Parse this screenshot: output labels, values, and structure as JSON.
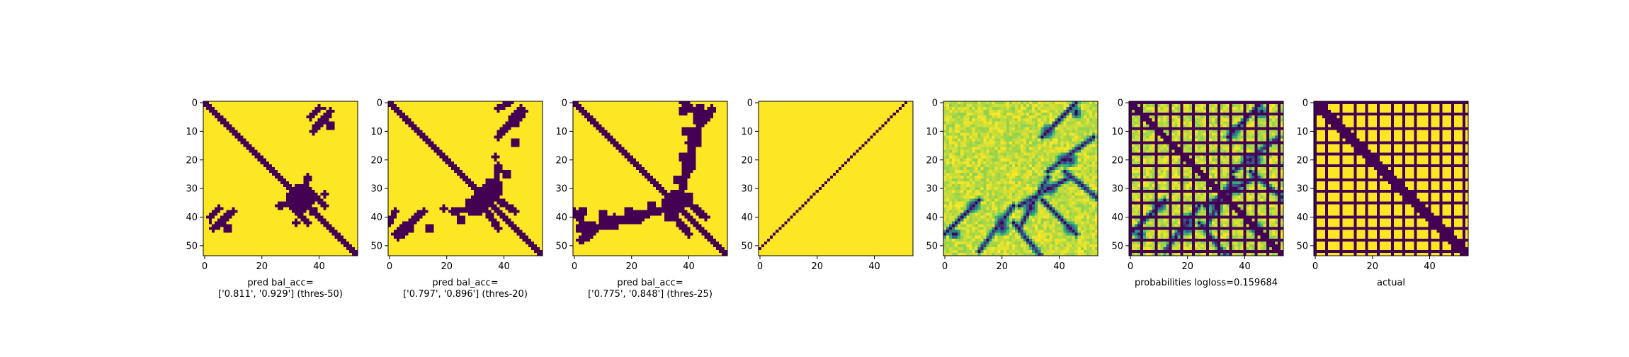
{
  "colors": {
    "background": "#440154",
    "foreground": "#fde725",
    "colormap": [
      "#440154",
      "#3b528b",
      "#21918c",
      "#5ec962",
      "#fde725"
    ]
  },
  "chart_data": [
    {
      "type": "heatmap",
      "matrix_size": 54,
      "xlim": [
        0,
        54
      ],
      "ylim": [
        54,
        0
      ],
      "xticks": [
        "0",
        "20",
        "40"
      ],
      "yticks": [
        "0",
        "10",
        "20",
        "30",
        "40",
        "50"
      ],
      "xlabel": [
        "pred bal_acc=",
        "['0.811', '0.929'] (thres-50)"
      ],
      "content": "binary",
      "diag_width": 1.6,
      "blobs": [
        [
          34,
          31,
          3.5,
          3
        ],
        [
          34,
          37,
          2.5,
          1.8
        ],
        [
          38,
          38,
          2,
          1.5
        ],
        [
          44,
          8,
          1.5,
          2
        ],
        [
          32,
          42,
          1.2,
          1.5
        ],
        [
          42,
          2,
          1,
          1
        ]
      ],
      "blob_lines": [
        [
          [
            3,
            44
          ],
          [
            10,
            38
          ]
        ],
        [
          [
            42,
            36
          ],
          [
            37,
            31
          ]
        ],
        [
          [
            26,
            36
          ],
          [
            33,
            34
          ]
        ],
        [
          [
            37,
            5
          ],
          [
            40,
            2
          ]
        ]
      ],
      "sym_lines": true,
      "zero_band": []
    },
    {
      "type": "heatmap",
      "matrix_size": 54,
      "xlim": [
        0,
        54
      ],
      "ylim": [
        54,
        0
      ],
      "xticks": [
        "0",
        "20",
        "40"
      ],
      "yticks": [
        "0",
        "10",
        "20",
        "30",
        "40",
        "50"
      ],
      "xlabel": [
        "pred bal_acc=",
        "['0.797', '0.896'] (thres-20)"
      ],
      "content": "binary",
      "diag_width": 1.8,
      "blobs": [
        [
          34,
          32,
          4,
          3.5
        ],
        [
          36,
          28,
          2.5,
          2
        ],
        [
          30,
          38,
          3,
          2
        ],
        [
          41,
          25,
          2,
          2
        ],
        [
          44,
          6,
          2,
          2.5
        ],
        [
          44,
          14,
          1.5,
          2
        ],
        [
          37,
          19,
          1.2,
          1.5
        ],
        [
          4,
          44,
          1.2,
          1.5
        ]
      ],
      "blob_lines": [
        [
          [
            2,
            46
          ],
          [
            12,
            38
          ]
        ],
        [
          [
            44,
            38
          ],
          [
            35,
            32
          ]
        ],
        [
          [
            30,
            37
          ],
          [
            22,
            38
          ]
        ],
        [
          [
            38,
            2
          ],
          [
            42,
            0
          ]
        ],
        [
          [
            47,
            3
          ],
          [
            44,
            7
          ]
        ]
      ],
      "sym_lines": true,
      "zero_band": []
    },
    {
      "type": "heatmap",
      "matrix_size": 54,
      "xlim": [
        0,
        54
      ],
      "ylim": [
        54,
        0
      ],
      "xticks": [
        "0",
        "20",
        "40"
      ],
      "yticks": [
        "0",
        "10",
        "20",
        "30",
        "40",
        "50"
      ],
      "xlabel": [
        "pred bal_acc=",
        "['0.775', '0.848'] (thres-25)"
      ],
      "content": "binary",
      "diag_width": 1.8,
      "blobs": [
        [
          36,
          34,
          4.5,
          4
        ],
        [
          37,
          27,
          3,
          2
        ],
        [
          40,
          22,
          3,
          2.5
        ],
        [
          34,
          40,
          3,
          2
        ],
        [
          44,
          5,
          3,
          3
        ],
        [
          43,
          13,
          2,
          2.5
        ],
        [
          38,
          19,
          2,
          2
        ],
        [
          40,
          10,
          3,
          2
        ],
        [
          38,
          3,
          2,
          2
        ],
        [
          44,
          2,
          2,
          2
        ]
      ],
      "blob_lines": [
        [
          [
            2,
            48
          ],
          [
            14,
            40
          ]
        ],
        [
          [
            46,
            40
          ],
          [
            36,
            32
          ]
        ],
        [
          [
            30,
            38
          ],
          [
            20,
            40
          ]
        ],
        [
          [
            41,
            20
          ],
          [
            41,
            12
          ]
        ],
        [
          [
            48,
            3
          ],
          [
            44,
            8
          ]
        ],
        [
          [
            38,
            0
          ],
          [
            46,
            6
          ]
        ]
      ],
      "sym_lines": true,
      "zero_band": []
    },
    {
      "type": "heatmap",
      "matrix_size": 54,
      "xlim": [
        0,
        54
      ],
      "ylim": [
        54,
        0
      ],
      "xticks": [
        "0",
        "20",
        "40"
      ],
      "yticks": [
        "0",
        "10",
        "20",
        "30",
        "40",
        "50"
      ],
      "xlabel": [
        "",
        ""
      ],
      "content": "antidiag",
      "diag_width": 0.5,
      "blobs": [],
      "blob_lines": [],
      "sym_lines": false,
      "zero_band": []
    },
    {
      "type": "heatmap",
      "matrix_size": 54,
      "xlim": [
        0,
        54
      ],
      "ylim": [
        54,
        0
      ],
      "xticks": [
        "0",
        "20",
        "40"
      ],
      "yticks": [
        "0",
        "10",
        "20",
        "30",
        "40",
        "50"
      ],
      "xlabel": [
        "",
        ""
      ],
      "content": "probabilities",
      "diag_width": 0,
      "blobs": [
        [
          30,
          36,
          3,
          3
        ],
        [
          37,
          30,
          3,
          3
        ],
        [
          42,
          20,
          4,
          3
        ],
        [
          44,
          44,
          3,
          3
        ],
        [
          20,
          44,
          3,
          3
        ],
        [
          36,
          10,
          3,
          3
        ],
        [
          46,
          3,
          2,
          2
        ],
        [
          4,
          46,
          2,
          2
        ]
      ],
      "blob_lines": [
        [
          [
            0,
            46
          ],
          [
            12,
            34
          ]
        ],
        [
          [
            46,
            46
          ],
          [
            34,
            34
          ]
        ],
        [
          [
            36,
            26
          ],
          [
            26,
            44
          ]
        ],
        [
          [
            12,
            52
          ],
          [
            24,
            36
          ]
        ],
        [
          [
            54,
            34
          ],
          [
            42,
            24
          ]
        ]
      ],
      "sym_lines": true,
      "zero_band": []
    },
    {
      "type": "heatmap",
      "matrix_size": 54,
      "xlim": [
        0,
        54
      ],
      "ylim": [
        54,
        0
      ],
      "xticks": [
        "0",
        "20",
        "40"
      ],
      "yticks": [
        "0",
        "10",
        "20",
        "30",
        "40",
        "50"
      ],
      "xlabel": [
        "probabilities logloss=0.159684",
        ""
      ],
      "content": "probabilities",
      "diag_width": 1.6,
      "blobs": [
        [
          30,
          36,
          3,
          3
        ],
        [
          37,
          30,
          3,
          3
        ],
        [
          42,
          20,
          4,
          3
        ],
        [
          44,
          44,
          3,
          3
        ],
        [
          20,
          44,
          3,
          3
        ],
        [
          36,
          10,
          3,
          3
        ],
        [
          46,
          3,
          2,
          2
        ],
        [
          4,
          46,
          2,
          2
        ]
      ],
      "blob_lines": [
        [
          [
            0,
            46
          ],
          [
            12,
            34
          ]
        ],
        [
          [
            46,
            46
          ],
          [
            34,
            34
          ]
        ],
        [
          [
            36,
            26
          ],
          [
            26,
            44
          ]
        ],
        [
          [
            12,
            52
          ],
          [
            24,
            36
          ]
        ],
        [
          [
            54,
            34
          ],
          [
            42,
            24
          ]
        ]
      ],
      "sym_lines": true,
      "zero_band": [
        0,
        4,
        9,
        14,
        18,
        22,
        27,
        31,
        35,
        40,
        44,
        48,
        52
      ]
    },
    {
      "type": "heatmap",
      "matrix_size": 54,
      "xlim": [
        0,
        54
      ],
      "ylim": [
        54,
        0
      ],
      "xticks": [
        "0",
        "20",
        "40"
      ],
      "yticks": [
        "0",
        "10",
        "20",
        "30",
        "40",
        "50"
      ],
      "xlabel": [
        "actual",
        ""
      ],
      "content": "binary",
      "diag_width": 2.2,
      "blobs": [],
      "blob_lines": [],
      "sym_lines": false,
      "zero_band": [
        0,
        4,
        9,
        14,
        18,
        22,
        27,
        31,
        35,
        40,
        44,
        48,
        52
      ]
    }
  ]
}
